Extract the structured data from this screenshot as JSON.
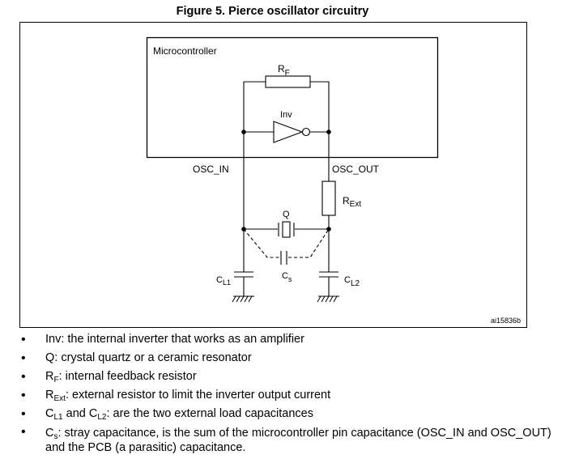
{
  "figure": {
    "title": "Figure 5. Pierce oscillator circuitry",
    "block_label": "Microcontroller",
    "figure_id": "ai15836b"
  },
  "components": {
    "rf": {
      "main": "R",
      "sub": "F"
    },
    "inv": "Inv",
    "rext": {
      "main": "R",
      "sub": "Ext"
    },
    "q": "Q",
    "cl1": {
      "main": "C",
      "sub": "L1"
    },
    "cl2": {
      "main": "C",
      "sub": "L2"
    },
    "cs": {
      "main": "C",
      "sub": "s"
    }
  },
  "pins": {
    "osc_in": "OSC_IN",
    "osc_out": "OSC_OUT"
  },
  "notes": [
    {
      "label": "Inv",
      "text": ": the internal inverter that works as an amplifier"
    },
    {
      "label": "Q",
      "text": ": crystal quartz or a ceramic resonator"
    },
    {
      "label": "R",
      "sub": "F",
      "text": ": internal feedback resistor"
    },
    {
      "label": "R",
      "sub": "Ext",
      "text": ": external resistor to limit the inverter output current"
    },
    {
      "label": "C",
      "sub": "L1",
      "mid": " and ",
      "label2": "C",
      "sub2": "L2",
      "text": ": are the two external load capacitances"
    },
    {
      "label": "C",
      "sub": "s",
      "text": ": stray capacitance, is the sum of the microcontroller pin capacitance (OSC_IN and OSC_OUT) and the PCB (a parasitic) capacitance."
    }
  ]
}
